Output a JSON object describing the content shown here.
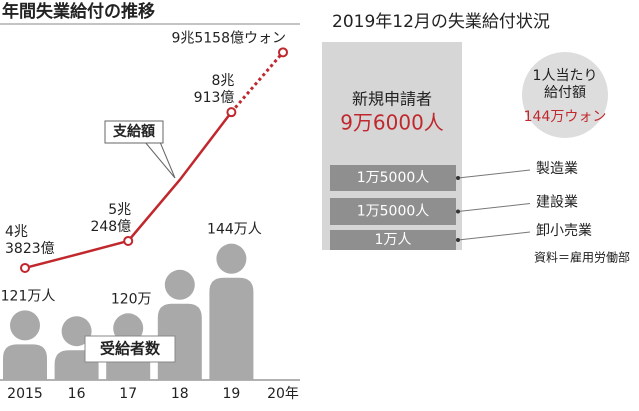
{
  "chart_data": {
    "type": "line",
    "title": "年間失業給付の推移",
    "categories": [
      "2015",
      "16",
      "17",
      "18",
      "19",
      "20年"
    ],
    "ylim": [
      40000,
      100000
    ],
    "y2lim": [
      97,
      150
    ],
    "projected_from_index": 4,
    "series": [
      {
        "name": "支給額",
        "color": "#c0282d",
        "values": [
          43823,
          47000,
          50248,
          64800,
          80913,
          95158
        ],
        "value_labels": [
          "4兆\n3823億",
          null,
          "5兆\n248億",
          null,
          "8兆\n913億",
          "9兆5158億ウォン"
        ],
        "markers": [
          true,
          false,
          true,
          false,
          true,
          true
        ]
      },
      {
        "name": "受給者数",
        "color": "#a9a9a9",
        "axis": "y2",
        "values": [
          121,
          119,
          120,
          135,
          144,
          null
        ],
        "value_labels": [
          "121万人",
          null,
          "120万",
          null,
          "144万人",
          null
        ]
      }
    ]
  },
  "panel": {
    "title": "2019年12月の失業給付状況",
    "applicants": {
      "label": "新規申請者",
      "value": "9万6000人"
    },
    "per_person": {
      "label": "1人当たり\n給付額",
      "value": "144万ウォン"
    },
    "industries": [
      {
        "value": "1万5000人",
        "name": "製造業"
      },
      {
        "value": "1万5000人",
        "name": "建設業"
      },
      {
        "value": "1万人",
        "name": "卸小売業"
      }
    ],
    "source": "資料＝雇用労働部"
  }
}
